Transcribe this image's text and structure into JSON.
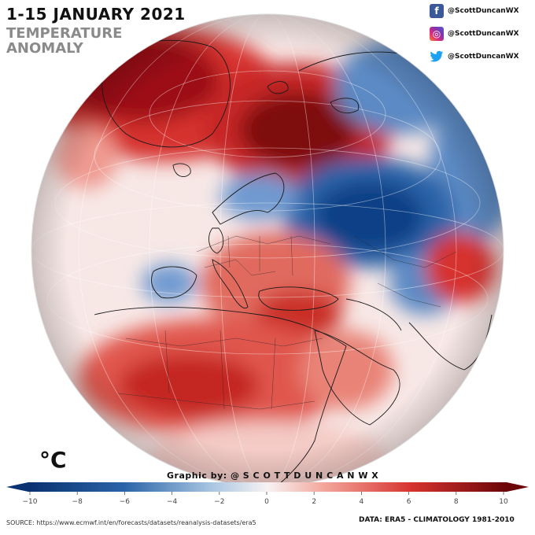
{
  "header": {
    "title": "1-15 JANUARY 2021",
    "subtitle": "TEMPERATURE ANOMALY"
  },
  "social": [
    {
      "network": "facebook",
      "icon": "facebook-icon",
      "glyph": "f",
      "handle": "@ScottDuncanWX"
    },
    {
      "network": "instagram",
      "icon": "instagram-icon",
      "glyph": "◎",
      "handle": "@ScottDuncanWX"
    },
    {
      "network": "twitter",
      "icon": "twitter-icon",
      "glyph": "🐦",
      "handle": "@ScottDuncanWX"
    }
  ],
  "map": {
    "projection": "orthographic",
    "colors": {
      "strong_warm": "#8b0a0d",
      "warm": "#d6332f",
      "light_warm": "#f3a59a",
      "neutral": "#f7efee",
      "light_cold": "#a7c4e2",
      "cold": "#2a64a8",
      "strong_cold": "#0c3f86"
    }
  },
  "legend": {
    "unit": "°C",
    "ticks": [
      "−10",
      "−8",
      "−6",
      "−4",
      "−2",
      "0",
      "2",
      "4",
      "6",
      "8",
      "10"
    ],
    "range": [
      -10,
      10
    ]
  },
  "credits": {
    "graphic_by": "Graphic by: @ S C O T T D U N C A N W X",
    "source": "SOURCE: https://www.ecmwf.int/en/forecasts/datasets/reanalysis-datasets/era5",
    "data": "DATA: ERA5 - CLIMATOLOGY 1981-2010"
  }
}
